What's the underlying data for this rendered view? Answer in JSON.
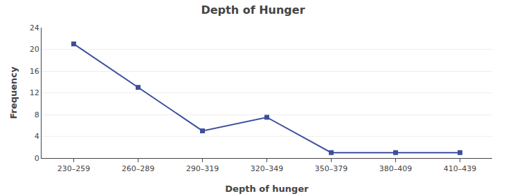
{
  "chart_data": {
    "type": "line",
    "title": "Depth of Hunger",
    "xlabel": "Depth of hunger",
    "ylabel": "Frequency",
    "categories": [
      "230–259",
      "260–289",
      "290–319",
      "320–349",
      "350–379",
      "380–409",
      "410–439"
    ],
    "values": [
      21,
      13,
      5,
      7.5,
      1,
      1,
      1
    ],
    "color": "#3d4e9e",
    "marker": "square",
    "ylim": [
      0,
      24
    ],
    "yticks": [
      0,
      4,
      8,
      12,
      16,
      20,
      24
    ],
    "grid": "y"
  }
}
